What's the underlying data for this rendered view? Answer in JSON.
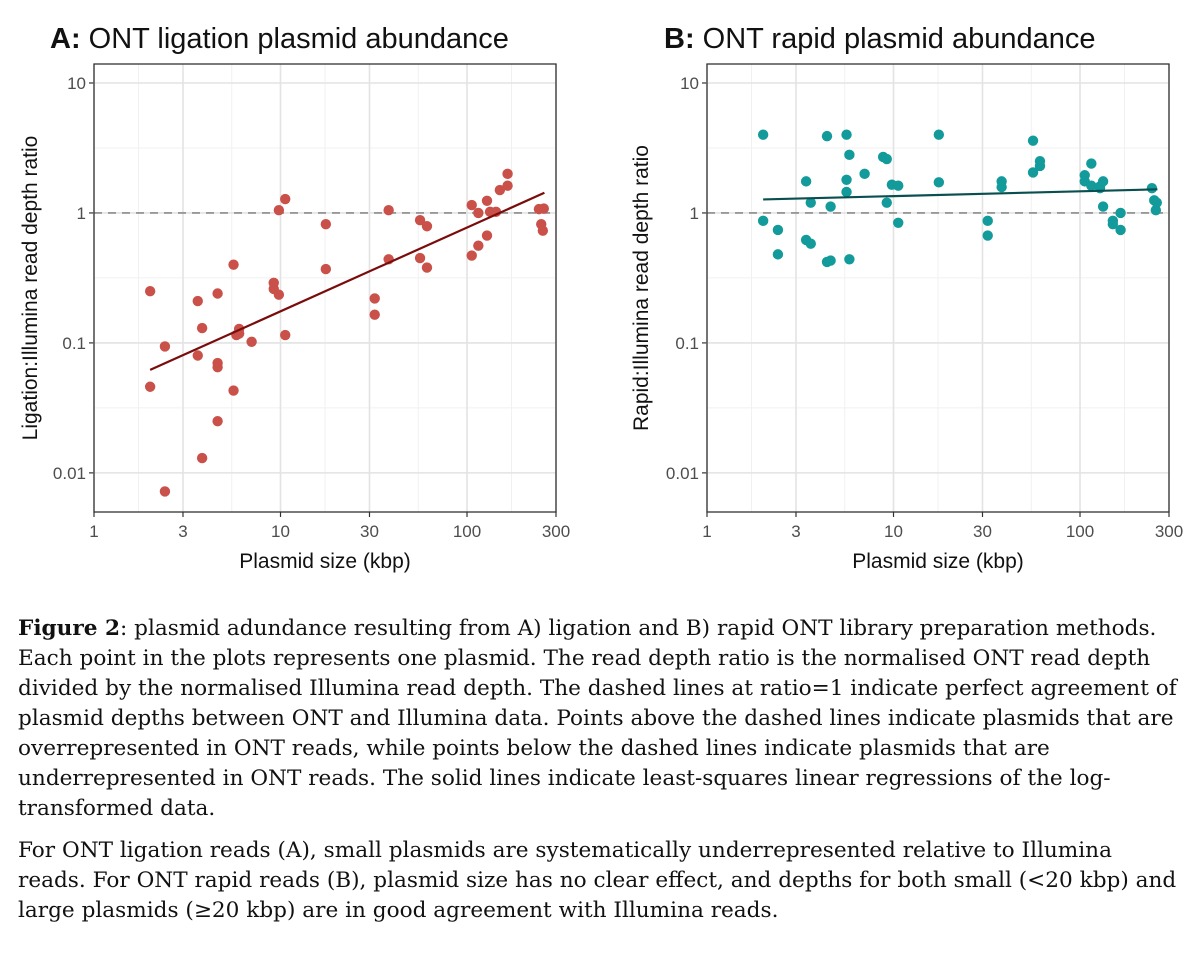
{
  "chart_data": [
    {
      "type": "scatter",
      "panel_letter": "A:",
      "title": "ONT ligation plasmid abundance",
      "xlabel": "Plasmid size (kbp)",
      "ylabel": "Ligation:Illumina read depth ratio",
      "x_scale": "log",
      "y_scale": "log",
      "xlim": [
        1,
        300
      ],
      "ylim": [
        0.005,
        14
      ],
      "x_ticks": [
        1,
        3,
        10,
        30,
        100,
        300
      ],
      "x_tick_labels": [
        "1",
        "3",
        "10",
        "30",
        "100",
        "300"
      ],
      "y_ticks": [
        0.01,
        0.1,
        1,
        10
      ],
      "y_tick_labels": [
        "0.01",
        "0.1",
        "1",
        "10"
      ],
      "reference_line": {
        "y": 1,
        "style": "dashed"
      },
      "regression": {
        "x": [
          2,
          260
        ],
        "y": [
          0.062,
          1.43
        ]
      },
      "grid": true,
      "point_color": "#c9514a",
      "line_color": "#7a0c0c",
      "points": [
        [
          2.0,
          0.25
        ],
        [
          2.0,
          0.046
        ],
        [
          2.4,
          0.094
        ],
        [
          2.4,
          0.0072
        ],
        [
          3.6,
          0.21
        ],
        [
          3.6,
          0.08
        ],
        [
          3.8,
          0.13
        ],
        [
          3.8,
          0.013
        ],
        [
          4.6,
          0.24
        ],
        [
          4.6,
          0.07
        ],
        [
          4.6,
          0.065
        ],
        [
          4.6,
          0.025
        ],
        [
          5.6,
          0.4
        ],
        [
          5.6,
          0.043
        ],
        [
          5.8,
          0.115
        ],
        [
          6.0,
          0.118
        ],
        [
          6.0,
          0.128
        ],
        [
          7.0,
          0.102
        ],
        [
          9.2,
          0.29
        ],
        [
          9.2,
          0.26
        ],
        [
          9.8,
          1.05
        ],
        [
          9.8,
          0.235
        ],
        [
          10.6,
          1.28
        ],
        [
          10.6,
          0.115
        ],
        [
          17.5,
          0.82
        ],
        [
          17.5,
          0.37
        ],
        [
          32.0,
          0.22
        ],
        [
          32.0,
          0.165
        ],
        [
          38.0,
          1.05
        ],
        [
          38.0,
          0.44
        ],
        [
          56.0,
          0.88
        ],
        [
          56.0,
          0.45
        ],
        [
          61.0,
          0.79
        ],
        [
          61.0,
          0.38
        ],
        [
          106.0,
          1.15
        ],
        [
          106.0,
          0.47
        ],
        [
          115.0,
          1.0
        ],
        [
          115.0,
          0.56
        ],
        [
          128.0,
          1.24
        ],
        [
          128.0,
          0.67
        ],
        [
          133.0,
          1.02
        ],
        [
          143.0,
          1.02
        ],
        [
          150.0,
          1.5
        ],
        [
          165.0,
          2.0
        ],
        [
          165.0,
          1.62
        ],
        [
          243.0,
          1.07
        ],
        [
          250.0,
          0.82
        ],
        [
          255.0,
          0.73
        ],
        [
          258.0,
          1.08
        ]
      ]
    },
    {
      "type": "scatter",
      "panel_letter": "B:",
      "title": "ONT rapid plasmid abundance",
      "xlabel": "Plasmid size (kbp)",
      "ylabel": "Rapid:Illumina read depth ratio",
      "x_scale": "log",
      "y_scale": "log",
      "xlim": [
        1,
        300
      ],
      "ylim": [
        0.005,
        14
      ],
      "x_ticks": [
        1,
        3,
        10,
        30,
        100,
        300
      ],
      "x_tick_labels": [
        "1",
        "3",
        "10",
        "30",
        "100",
        "300"
      ],
      "y_ticks": [
        0.01,
        0.1,
        1,
        10
      ],
      "y_tick_labels": [
        "0.01",
        "0.1",
        "1",
        "10"
      ],
      "reference_line": {
        "y": 1,
        "style": "dashed"
      },
      "regression": {
        "x": [
          2,
          260
        ],
        "y": [
          1.27,
          1.52
        ]
      },
      "grid": true,
      "point_color": "#139a9a",
      "line_color": "#0a4f4f",
      "points": [
        [
          2.0,
          4.0
        ],
        [
          2.0,
          0.87
        ],
        [
          2.4,
          0.74
        ],
        [
          2.4,
          0.48
        ],
        [
          3.4,
          1.75
        ],
        [
          3.4,
          0.62
        ],
        [
          3.6,
          1.2
        ],
        [
          3.6,
          0.58
        ],
        [
          4.4,
          3.9
        ],
        [
          4.4,
          0.42
        ],
        [
          4.6,
          1.12
        ],
        [
          4.6,
          0.43
        ],
        [
          5.6,
          4.0
        ],
        [
          5.6,
          1.8
        ],
        [
          5.6,
          1.45
        ],
        [
          5.8,
          2.8
        ],
        [
          5.8,
          0.44
        ],
        [
          7.0,
          2.0
        ],
        [
          8.8,
          2.7
        ],
        [
          9.2,
          2.6
        ],
        [
          9.2,
          1.2
        ],
        [
          9.8,
          1.65
        ],
        [
          10.6,
          1.62
        ],
        [
          10.6,
          0.84
        ],
        [
          17.5,
          4.0
        ],
        [
          17.5,
          1.72
        ],
        [
          32.0,
          0.87
        ],
        [
          32.0,
          0.67
        ],
        [
          38.0,
          1.75
        ],
        [
          38.0,
          1.58
        ],
        [
          56.0,
          3.6
        ],
        [
          56.0,
          2.05
        ],
        [
          61.0,
          2.5
        ],
        [
          61.0,
          2.3
        ],
        [
          106.0,
          1.95
        ],
        [
          106.0,
          1.75
        ],
        [
          115.0,
          2.4
        ],
        [
          115.0,
          1.62
        ],
        [
          128.0,
          1.55
        ],
        [
          128.0,
          1.6
        ],
        [
          133.0,
          1.75
        ],
        [
          133.0,
          1.12
        ],
        [
          150.0,
          0.87
        ],
        [
          150.0,
          0.82
        ],
        [
          165.0,
          1.0
        ],
        [
          165.0,
          0.74
        ],
        [
          243.0,
          1.55
        ],
        [
          250.0,
          1.25
        ],
        [
          255.0,
          1.05
        ],
        [
          258.0,
          1.2
        ]
      ]
    }
  ],
  "caption": {
    "figure_label": "Figure 2",
    "paragraph1_rest": ": plasmid adundance resulting from A) ligation and B) rapid ONT library preparation methods. Each point in the plots represents one plasmid. The read depth ratio is the normalised ONT read depth divided by the normalised Illumina read depth. The dashed lines at ratio=1 indicate perfect agreement of plasmid depths between ONT and Illumina data. Points above the dashed lines indicate plasmids that are overrepresented in ONT reads, while points below the dashed lines indicate plasmids that are underrepresented in ONT reads. The solid lines indicate least-squares linear regressions of the log-transformed data.",
    "paragraph2": "For ONT ligation reads (A), small plasmids are systematically underrepresented relative to Illumina reads. For ONT rapid reads (B), plasmid size has no clear effect, and depths for both small (<20 kbp) and large plasmids (≥20 kbp) are in good agreement with Illumina reads."
  }
}
